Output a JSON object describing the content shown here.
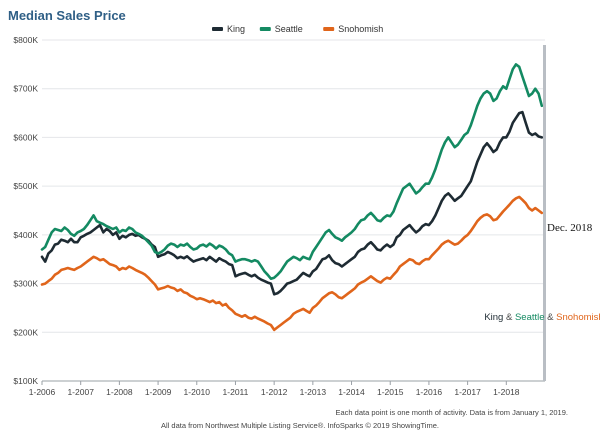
{
  "chart_data": {
    "type": "line",
    "title": "Median Sales Price",
    "x_labels": [
      "1-2006",
      "1-2007",
      "1-2008",
      "1-2009",
      "1-2010",
      "1-2011",
      "1-2012",
      "1-2013",
      "1-2014",
      "1-2015",
      "1-2016",
      "1-2017",
      "1-2018"
    ],
    "y_ticks": [
      "$100K",
      "$200K",
      "$300K",
      "$400K",
      "$500K",
      "$600K",
      "$700K",
      "$800K"
    ],
    "ylim": [
      100000,
      800000
    ],
    "x_start": "2006-01",
    "months": 156,
    "legend": [
      {
        "name": "King",
        "color": "#1e2b33"
      },
      {
        "name": "Seattle",
        "color": "#148a62"
      },
      {
        "name": "Snohomish",
        "color": "#e0651b"
      }
    ],
    "series": [
      {
        "name": "King",
        "color": "#1e2b33",
        "values": [
          355000,
          345000,
          362000,
          368000,
          380000,
          382000,
          390000,
          388000,
          385000,
          392000,
          385000,
          385000,
          395000,
          398000,
          402000,
          405000,
          410000,
          415000,
          420000,
          405000,
          412000,
          408000,
          400000,
          405000,
          392000,
          398000,
          395000,
          400000,
          402000,
          398000,
          400000,
          395000,
          392000,
          388000,
          380000,
          375000,
          355000,
          358000,
          360000,
          365000,
          362000,
          358000,
          352000,
          355000,
          352000,
          356000,
          350000,
          345000,
          348000,
          350000,
          352000,
          348000,
          355000,
          350000,
          345000,
          352000,
          348000,
          345000,
          340000,
          338000,
          315000,
          318000,
          320000,
          322000,
          318000,
          315000,
          318000,
          312000,
          308000,
          305000,
          302000,
          300000,
          278000,
          280000,
          285000,
          292000,
          300000,
          302000,
          305000,
          308000,
          315000,
          322000,
          318000,
          315000,
          325000,
          330000,
          340000,
          350000,
          352000,
          358000,
          348000,
          342000,
          340000,
          335000,
          340000,
          345000,
          350000,
          355000,
          365000,
          370000,
          372000,
          380000,
          385000,
          378000,
          370000,
          368000,
          375000,
          380000,
          375000,
          380000,
          395000,
          400000,
          410000,
          415000,
          420000,
          412000,
          405000,
          410000,
          418000,
          422000,
          420000,
          428000,
          440000,
          455000,
          470000,
          480000,
          485000,
          478000,
          470000,
          475000,
          480000,
          490000,
          500000,
          510000,
          530000,
          550000,
          565000,
          580000,
          588000,
          580000,
          570000,
          575000,
          590000,
          600000,
          600000,
          612000,
          630000,
          640000,
          650000,
          652000,
          630000,
          610000,
          605000,
          608000,
          602000,
          600000
        ]
      },
      {
        "name": "Seattle",
        "color": "#148a62",
        "values": [
          370000,
          375000,
          390000,
          405000,
          412000,
          410000,
          408000,
          415000,
          410000,
          402000,
          398000,
          405000,
          408000,
          412000,
          420000,
          430000,
          440000,
          428000,
          425000,
          422000,
          418000,
          415000,
          412000,
          415000,
          405000,
          410000,
          408000,
          415000,
          412000,
          405000,
          402000,
          398000,
          392000,
          385000,
          378000,
          365000,
          362000,
          365000,
          370000,
          378000,
          382000,
          380000,
          375000,
          380000,
          378000,
          382000,
          375000,
          370000,
          372000,
          378000,
          380000,
          376000,
          382000,
          378000,
          372000,
          378000,
          375000,
          370000,
          362000,
          358000,
          345000,
          348000,
          350000,
          350000,
          348000,
          345000,
          348000,
          345000,
          335000,
          325000,
          318000,
          310000,
          312000,
          318000,
          325000,
          335000,
          345000,
          350000,
          355000,
          352000,
          348000,
          355000,
          352000,
          350000,
          365000,
          375000,
          385000,
          395000,
          405000,
          410000,
          402000,
          395000,
          392000,
          388000,
          395000,
          400000,
          405000,
          412000,
          422000,
          430000,
          432000,
          440000,
          445000,
          438000,
          430000,
          428000,
          435000,
          440000,
          438000,
          448000,
          465000,
          480000,
          495000,
          500000,
          505000,
          495000,
          485000,
          490000,
          498000,
          505000,
          505000,
          518000,
          535000,
          555000,
          575000,
          590000,
          600000,
          590000,
          580000,
          585000,
          595000,
          605000,
          610000,
          625000,
          645000,
          665000,
          680000,
          690000,
          695000,
          690000,
          675000,
          680000,
          695000,
          705000,
          700000,
          720000,
          740000,
          750000,
          745000,
          725000,
          705000,
          685000,
          690000,
          700000,
          690000,
          665000
        ]
      },
      {
        "name": "Snohomish",
        "color": "#e0651b",
        "values": [
          298000,
          300000,
          305000,
          310000,
          318000,
          322000,
          328000,
          330000,
          332000,
          330000,
          328000,
          332000,
          335000,
          340000,
          345000,
          350000,
          355000,
          352000,
          348000,
          350000,
          345000,
          340000,
          338000,
          335000,
          328000,
          332000,
          330000,
          335000,
          332000,
          328000,
          325000,
          322000,
          318000,
          312000,
          305000,
          298000,
          288000,
          290000,
          292000,
          295000,
          292000,
          290000,
          285000,
          288000,
          282000,
          280000,
          275000,
          272000,
          268000,
          270000,
          268000,
          265000,
          262000,
          265000,
          260000,
          262000,
          255000,
          258000,
          250000,
          245000,
          238000,
          235000,
          232000,
          235000,
          230000,
          228000,
          232000,
          228000,
          225000,
          222000,
          218000,
          215000,
          205000,
          210000,
          215000,
          220000,
          225000,
          230000,
          238000,
          242000,
          245000,
          248000,
          244000,
          240000,
          250000,
          255000,
          262000,
          270000,
          275000,
          280000,
          282000,
          278000,
          272000,
          270000,
          275000,
          280000,
          285000,
          290000,
          298000,
          302000,
          305000,
          310000,
          315000,
          310000,
          305000,
          302000,
          308000,
          312000,
          310000,
          318000,
          325000,
          335000,
          340000,
          345000,
          350000,
          348000,
          342000,
          340000,
          346000,
          350000,
          350000,
          358000,
          365000,
          372000,
          380000,
          385000,
          388000,
          384000,
          380000,
          382000,
          388000,
          395000,
          400000,
          408000,
          418000,
          428000,
          435000,
          440000,
          442000,
          438000,
          430000,
          432000,
          440000,
          448000,
          455000,
          462000,
          470000,
          475000,
          478000,
          472000,
          465000,
          455000,
          450000,
          455000,
          450000,
          445000
        ]
      }
    ],
    "annotation": "Dec. 2018"
  },
  "credit": [
    {
      "text": "King",
      "color": "#1e2b33"
    },
    {
      "text": " & ",
      "color": "#444444"
    },
    {
      "text": "Seattle",
      "color": "#148a62"
    },
    {
      "text": " & ",
      "color": "#444444"
    },
    {
      "text": "Snohomish",
      "color": "#e0651b"
    }
  ],
  "footnote_1": "Each data point is one month of activity. Data is from January 1, 2019.",
  "footnote_2": "All data from Northwest Multiple Listing Service®. InfoSparks © 2019 ShowingTime."
}
